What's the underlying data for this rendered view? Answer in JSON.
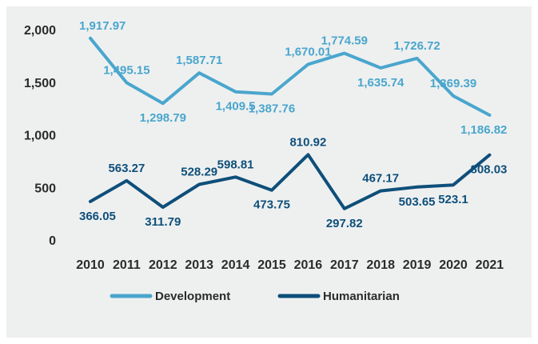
{
  "chart_data": {
    "type": "line",
    "categories": [
      "2010",
      "2011",
      "2012",
      "2013",
      "2014",
      "2015",
      "2016",
      "2017",
      "2018",
      "2019",
      "2020",
      "2021"
    ],
    "yticks": [
      "2,000",
      "1,500",
      "1,000",
      "500",
      "0"
    ],
    "series": [
      {
        "name": "Development",
        "color": "#4aa6cd",
        "values": [
          1917.97,
          1495.15,
          1298.79,
          1587.71,
          1409.5,
          1387.76,
          1670.01,
          1774.59,
          1635.74,
          1726.72,
          1369.39,
          1186.82
        ],
        "labels": [
          "1,917.97",
          "1,495.15",
          "1,298.79",
          "1,587.71",
          "1,409.5",
          "1,387.76",
          "1,670.01",
          "1,774.59",
          "1,635.74",
          "1,726.72",
          "1,369.39",
          "1,186.82"
        ],
        "label_pos": [
          "above",
          "above",
          "below",
          "above",
          "below",
          "below",
          "above",
          "above",
          "below",
          "above",
          "above",
          "below"
        ]
      },
      {
        "name": "Humanitarian",
        "color": "#0e4f7a",
        "values": [
          366.05,
          563.27,
          311.79,
          528.29,
          598.81,
          473.75,
          810.92,
          297.82,
          467.17,
          503.65,
          523.1,
          808.03
        ],
        "labels": [
          "366.05",
          "563.27",
          "311.79",
          "528.29",
          "598.81",
          "473.75",
          "810.92",
          "297.82",
          "467.17",
          "503.65",
          "523.1",
          "808.03"
        ],
        "label_pos": [
          "below",
          "above",
          "below",
          "above",
          "above",
          "below",
          "above",
          "below",
          "above",
          "below",
          "below",
          "below"
        ]
      }
    ],
    "ylim": [
      0,
      2000
    ],
    "grid": false,
    "legend": "bottom"
  }
}
